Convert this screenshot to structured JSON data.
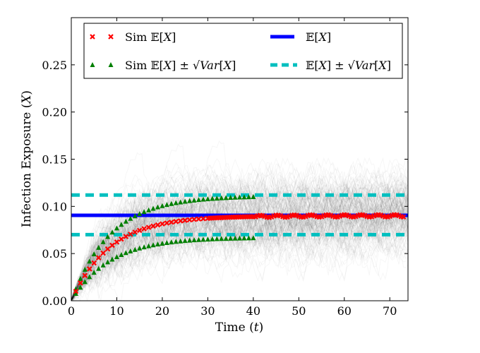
{
  "chart_data": {
    "type": "line",
    "title": "",
    "xlabel": "Time (t)",
    "ylabel": "Infection Exposure (X)",
    "xlim": [
      0,
      74
    ],
    "ylim": [
      0,
      0.3
    ],
    "xticks": [
      0,
      10,
      20,
      30,
      40,
      50,
      60,
      70
    ],
    "yticks": [
      0.0,
      0.05,
      0.1,
      0.15,
      0.2,
      0.25
    ],
    "xtick_labels": [
      "0",
      "10",
      "20",
      "30",
      "40",
      "50",
      "60",
      "70"
    ],
    "ytick_labels": [
      "0.00",
      "0.05",
      "0.10",
      "0.15",
      "0.20",
      "0.25"
    ],
    "grid": false,
    "legend_position": "top",
    "background_simulation_runs": {
      "description_visible": false,
      "count_approx": 150,
      "color": "#000000",
      "steady_state_mean": 0.09,
      "steady_state_std": 0.021,
      "time_constant": 8.5
    },
    "series": [
      {
        "name": "Sim E[X]",
        "legend_label": "Sim 𝔼[X]",
        "marker": "x",
        "color": "#ff0000",
        "x_start": 1,
        "x_end": 73,
        "steady_state": 0.09,
        "time_constant": 8.5,
        "note": "follows mean curve, red x markers become continuous line after t≈30"
      },
      {
        "name": "Sim E[X] + sqrt(Var[X])",
        "legend_label": "Sim 𝔼[X] ± √Var[X]",
        "marker": "triangle",
        "color": "#007f00",
        "steady_state": 0.111,
        "time_constant": 8.5,
        "x_end": 40
      },
      {
        "name": "Sim E[X] - sqrt(Var[X])",
        "legend_label": "",
        "marker": "triangle",
        "color": "#007f00",
        "steady_state": 0.067,
        "time_constant": 8.5,
        "x_end": 40
      },
      {
        "name": "E[X]",
        "legend_label": "𝔼[X]",
        "style": "solid",
        "color": "#0000ff",
        "value": 0.0905
      },
      {
        "name": "E[X] + sqrt(Var[X])",
        "legend_label": "𝔼[X] ± √Var[X]",
        "style": "dashed",
        "color": "#00bfbf",
        "value": 0.112
      },
      {
        "name": "E[X] - sqrt(Var[X])",
        "legend_label": "",
        "style": "dashed",
        "color": "#00bfbf",
        "value": 0.07
      }
    ],
    "legend": {
      "entries": [
        {
          "label": "Sim 𝔼[X]",
          "symbol": "x",
          "color": "#ff0000"
        },
        {
          "label": "𝔼[X]",
          "symbol": "solid",
          "color": "#0000ff"
        },
        {
          "label": "Sim 𝔼[X] ± √Var[X]",
          "symbol": "triangle",
          "color": "#007f00"
        },
        {
          "label": "𝔼[X] ± √Var[X]",
          "symbol": "dashed",
          "color": "#00bfbf"
        }
      ]
    }
  }
}
